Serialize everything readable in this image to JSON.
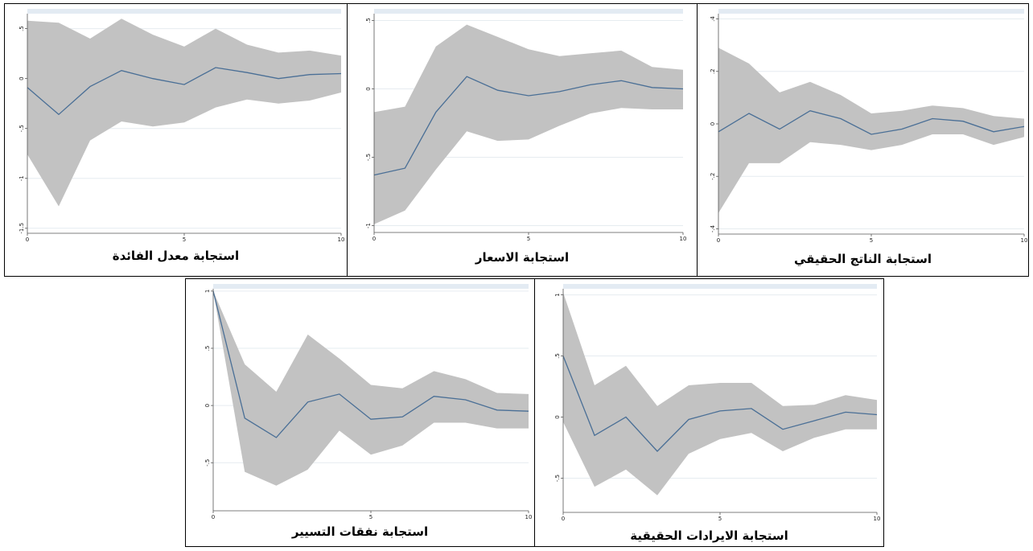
{
  "colors": {
    "band": "#c2c2c2",
    "line": "#4a6f96",
    "grid": "#e6ecf0",
    "plotBg": "#ffffff",
    "topStrip": "#e3ebf3"
  },
  "chart_data": [
    {
      "type": "area",
      "title": "استجابة معدل الفائدة",
      "x": [
        0,
        1,
        2,
        3,
        4,
        5,
        6,
        7,
        8,
        9,
        10
      ],
      "xticks": [
        0,
        5,
        10
      ],
      "xtick_labels": [
        "0",
        "5",
        "10"
      ],
      "ylim": [
        -1.55,
        0.65
      ],
      "yticks": [
        0.5,
        0,
        -0.5,
        -1,
        -1.5
      ],
      "ytick_labels": [
        ".5",
        "0",
        "-.5",
        "-1",
        "-1.5"
      ],
      "series": [
        {
          "role": "irf",
          "values": [
            -0.09,
            -0.36,
            -0.08,
            0.08,
            0.0,
            -0.06,
            0.11,
            0.06,
            0.0,
            0.04,
            0.05
          ]
        },
        {
          "role": "upper",
          "values": [
            0.58,
            0.56,
            0.4,
            0.6,
            0.44,
            0.32,
            0.5,
            0.34,
            0.26,
            0.28,
            0.23
          ]
        },
        {
          "role": "lower",
          "values": [
            -0.76,
            -1.28,
            -0.62,
            -0.43,
            -0.48,
            -0.44,
            -0.29,
            -0.21,
            -0.25,
            -0.22,
            -0.14
          ]
        }
      ]
    },
    {
      "type": "area",
      "title": "استجابة الاسعار",
      "x": [
        0,
        1,
        2,
        3,
        4,
        5,
        6,
        7,
        8,
        9,
        10
      ],
      "xticks": [
        0,
        5,
        10
      ],
      "xtick_labels": [
        "0",
        "5",
        "10"
      ],
      "ylim": [
        -1.05,
        0.55
      ],
      "yticks": [
        0.5,
        0,
        -0.5,
        -1
      ],
      "ytick_labels": [
        ".5",
        "0",
        "-.5",
        "-1"
      ],
      "series": [
        {
          "role": "irf",
          "values": [
            -0.63,
            -0.58,
            -0.17,
            0.09,
            -0.01,
            -0.05,
            -0.02,
            0.03,
            0.06,
            0.01,
            0.0
          ]
        },
        {
          "role": "upper",
          "values": [
            -0.17,
            -0.13,
            0.31,
            0.47,
            0.38,
            0.29,
            0.24,
            0.26,
            0.28,
            0.16,
            0.14
          ]
        },
        {
          "role": "lower",
          "values": [
            -0.99,
            -0.89,
            -0.59,
            -0.31,
            -0.38,
            -0.37,
            -0.27,
            -0.18,
            -0.14,
            -0.15,
            -0.15
          ]
        }
      ]
    },
    {
      "type": "area",
      "title": "استجابة الناتج الحقيقي",
      "x": [
        0,
        1,
        2,
        3,
        4,
        5,
        6,
        7,
        8,
        9,
        10
      ],
      "xticks": [
        0,
        5,
        10
      ],
      "xtick_labels": [
        "0",
        "5",
        "10"
      ],
      "ylim": [
        -0.42,
        0.42
      ],
      "yticks": [
        0.4,
        0.2,
        0,
        -0.2,
        -0.4
      ],
      "ytick_labels": [
        ".4",
        ".2",
        "0",
        "-.2",
        "-.4"
      ],
      "series": [
        {
          "role": "irf",
          "values": [
            -0.03,
            0.04,
            -0.02,
            0.05,
            0.02,
            -0.04,
            -0.02,
            0.02,
            0.01,
            -0.03,
            -0.01
          ]
        },
        {
          "role": "upper",
          "values": [
            0.29,
            0.23,
            0.12,
            0.16,
            0.11,
            0.04,
            0.05,
            0.07,
            0.06,
            0.03,
            0.02
          ]
        },
        {
          "role": "lower",
          "values": [
            -0.34,
            -0.15,
            -0.15,
            -0.07,
            -0.08,
            -0.1,
            -0.08,
            -0.04,
            -0.04,
            -0.08,
            -0.05
          ]
        }
      ]
    },
    {
      "type": "area",
      "title": "استجابة نفقات التسيير",
      "x": [
        0,
        1,
        2,
        3,
        4,
        5,
        6,
        7,
        8,
        9,
        10
      ],
      "xticks": [
        0,
        5,
        10
      ],
      "xtick_labels": [
        "0",
        "5",
        "10"
      ],
      "ylim": [
        -0.92,
        1.02
      ],
      "yticks": [
        1,
        0.5,
        0,
        -0.5
      ],
      "ytick_labels": [
        "1",
        ".5",
        "0",
        "-.5"
      ],
      "series": [
        {
          "role": "irf",
          "values": [
            1.0,
            -0.11,
            -0.28,
            0.03,
            0.1,
            -0.12,
            -0.1,
            0.08,
            0.05,
            -0.04,
            -0.05
          ]
        },
        {
          "role": "upper",
          "values": [
            1.0,
            0.36,
            0.12,
            0.62,
            0.41,
            0.18,
            0.15,
            0.3,
            0.23,
            0.11,
            0.1
          ]
        },
        {
          "role": "lower",
          "values": [
            1.0,
            -0.58,
            -0.7,
            -0.56,
            -0.22,
            -0.43,
            -0.35,
            -0.15,
            -0.15,
            -0.2,
            -0.2
          ]
        }
      ]
    },
    {
      "type": "area",
      "title": "استجابة الايرادات الحقيقية",
      "x": [
        0,
        1,
        2,
        3,
        4,
        5,
        6,
        7,
        8,
        9,
        10
      ],
      "xticks": [
        0,
        5,
        10
      ],
      "xtick_labels": [
        "0",
        "5",
        "10"
      ],
      "ylim": [
        -0.78,
        1.05
      ],
      "yticks": [
        1,
        0.5,
        0,
        -0.5
      ],
      "ytick_labels": [
        "1",
        ".5",
        "0",
        "-.5"
      ],
      "series": [
        {
          "role": "irf",
          "values": [
            0.5,
            -0.15,
            0.0,
            -0.28,
            -0.02,
            0.05,
            0.07,
            -0.1,
            -0.03,
            0.04,
            0.02
          ]
        },
        {
          "role": "upper",
          "values": [
            1.02,
            0.26,
            0.42,
            0.09,
            0.26,
            0.28,
            0.28,
            0.09,
            0.1,
            0.18,
            0.14
          ]
        },
        {
          "role": "lower",
          "values": [
            -0.04,
            -0.57,
            -0.43,
            -0.64,
            -0.3,
            -0.18,
            -0.13,
            -0.28,
            -0.17,
            -0.1,
            -0.1
          ]
        }
      ]
    }
  ]
}
